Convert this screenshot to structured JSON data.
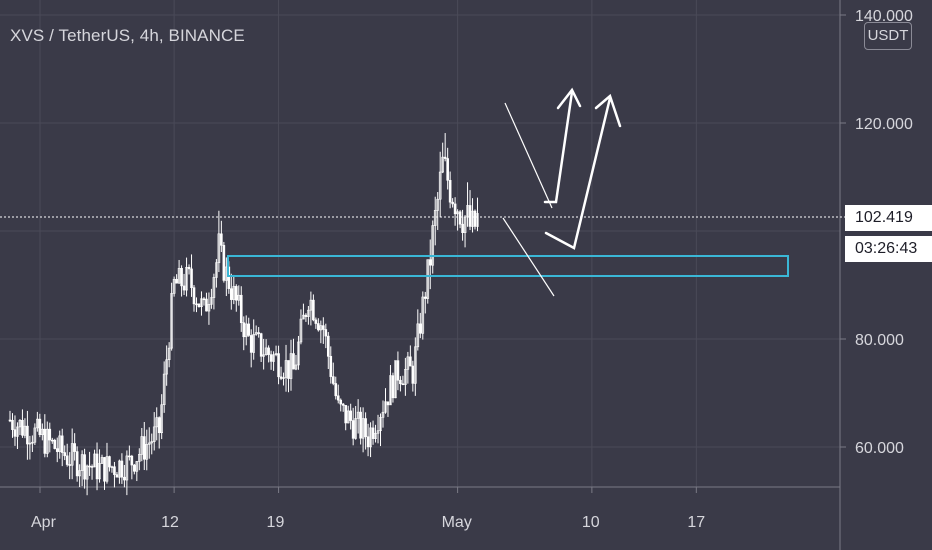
{
  "header": {
    "title": "XVS / TetherUS, 4h, BINANCE",
    "currency_button": "USDT"
  },
  "colors": {
    "background": "#3a3a48",
    "grid": "#4a4a58",
    "text": "#d6d6dc",
    "candle": "#ffffff",
    "zone": "#3ab7d6",
    "drawing": "#ffffff"
  },
  "price_tag": {
    "price": "102.419",
    "countdown": "03:26:43"
  },
  "chart_data": {
    "type": "candlestick",
    "x_ticks": [
      "Apr",
      "12",
      "19",
      "May",
      "10",
      "17"
    ],
    "y_ticks": [
      "140.000",
      "120.000",
      "80.000",
      "60.000"
    ],
    "ylim": [
      50,
      140
    ],
    "current_price": 102.419,
    "support_zone": {
      "low": 94.5,
      "high": 98.3
    },
    "candles_approx": [
      {
        "day": 1,
        "close": 65
      },
      {
        "day": 3,
        "close": 62
      },
      {
        "day": 5,
        "close": 58
      },
      {
        "day": 7,
        "close": 56
      },
      {
        "day": 9,
        "close": 57
      },
      {
        "day": 11,
        "close": 63
      },
      {
        "day": 12,
        "close": 90
      },
      {
        "day": 13,
        "close": 91
      },
      {
        "day": 14,
        "close": 85
      },
      {
        "day": 15,
        "close": 96
      },
      {
        "day": 16,
        "close": 88
      },
      {
        "day": 17,
        "close": 80
      },
      {
        "day": 18,
        "close": 78
      },
      {
        "day": 20,
        "close": 74
      },
      {
        "day": 21,
        "close": 88
      },
      {
        "day": 22,
        "close": 82
      },
      {
        "day": 23,
        "close": 67
      },
      {
        "day": 25,
        "close": 62
      },
      {
        "day": 26,
        "close": 68
      },
      {
        "day": 27,
        "close": 74
      },
      {
        "day": 28,
        "close": 74
      },
      {
        "day": 29,
        "close": 92
      },
      {
        "day": 30,
        "close": 112
      },
      {
        "day": 31,
        "close": 105
      },
      {
        "day": 32,
        "close": 100
      },
      {
        "day": 32.4,
        "close": 102.4
      }
    ]
  }
}
